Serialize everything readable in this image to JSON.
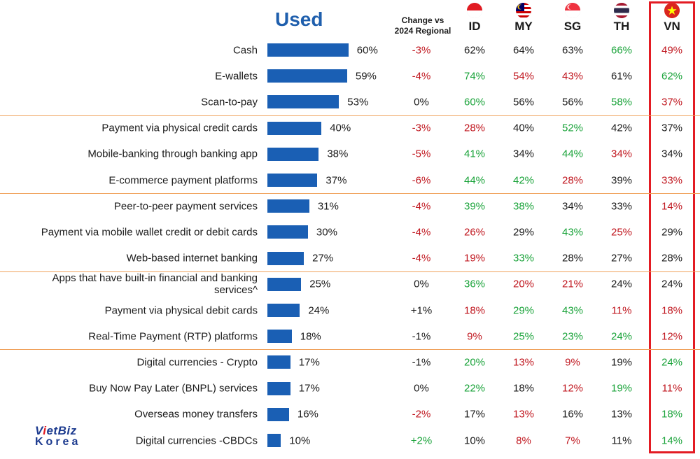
{
  "header": {
    "title": "Used",
    "change_header": [
      "Change vs",
      "2024 Regional"
    ],
    "countries": [
      {
        "code": "ID",
        "flag": "indonesia-flag-icon"
      },
      {
        "code": "MY",
        "flag": "malaysia-flag-icon"
      },
      {
        "code": "SG",
        "flag": "singapore-flag-icon"
      },
      {
        "code": "TH",
        "flag": "thailand-flag-icon"
      },
      {
        "code": "VN",
        "flag": "vietnam-flag-icon"
      }
    ]
  },
  "colors": {
    "bar": "#1a5fb4",
    "title": "#1f5fad",
    "positive": "#1aa33a",
    "negative": "#c0171f",
    "neutral": "#1a1a1a",
    "separator": "#f0a25c",
    "highlight_box": "#e31b23"
  },
  "logo": {
    "line1": "VietBiz",
    "line2": "Korea"
  },
  "chart_data": {
    "type": "bar",
    "orientation": "horizontal",
    "title": "Used",
    "xlim": [
      0,
      100
    ],
    "categories": [
      "Cash",
      "E-wallets",
      "Scan-to-pay",
      "Payment via physical credit cards",
      "Mobile-banking through banking app",
      "E-commerce payment platforms",
      "Peer-to-peer payment services",
      "Payment via mobile wallet credit or debit cards",
      "Web-based internet banking",
      "Apps that have built-in financial and banking services^",
      "Payment via physical debit cards",
      "Real-Time Payment (RTP) platforms",
      "Digital currencies - Crypto",
      "Buy Now Pay Later (BNPL) services",
      "Overseas money transfers",
      "Digital currencies -CBDCs"
    ],
    "series": [
      {
        "values": [
          60,
          59,
          53,
          40,
          38,
          37,
          31,
          30,
          27,
          25,
          24,
          18,
          17,
          17,
          16,
          10
        ]
      }
    ],
    "group_separators_after": [
      2,
      5,
      8,
      11
    ],
    "table": {
      "change_vs_2024_regional": [
        "-3%",
        "-4%",
        "0%",
        "-3%",
        "-5%",
        "-6%",
        "-4%",
        "-4%",
        "-4%",
        "0%",
        "+1%",
        "-1%",
        "-1%",
        "0%",
        "-2%",
        "+2%"
      ],
      "change_status": [
        "neg",
        "neg",
        "neu",
        "neg",
        "neg",
        "neg",
        "neg",
        "neg",
        "neg",
        "neu",
        "neu",
        "neu",
        "neu",
        "neu",
        "neg",
        "pos"
      ],
      "countries": {
        "ID": {
          "values": [
            "62%",
            "74%",
            "60%",
            "28%",
            "41%",
            "44%",
            "39%",
            "26%",
            "19%",
            "36%",
            "18%",
            "9%",
            "20%",
            "22%",
            "17%",
            "10%"
          ],
          "status": [
            "neu",
            "pos",
            "pos",
            "neg",
            "pos",
            "pos",
            "pos",
            "neg",
            "neg",
            "pos",
            "neg",
            "neg",
            "pos",
            "pos",
            "neu",
            "neu"
          ]
        },
        "MY": {
          "values": [
            "64%",
            "54%",
            "56%",
            "40%",
            "34%",
            "42%",
            "38%",
            "29%",
            "33%",
            "20%",
            "29%",
            "25%",
            "13%",
            "18%",
            "13%",
            "8%"
          ],
          "status": [
            "neu",
            "neg",
            "neu",
            "neu",
            "neu",
            "pos",
            "pos",
            "neu",
            "pos",
            "neg",
            "pos",
            "pos",
            "neg",
            "neu",
            "neg",
            "neg"
          ]
        },
        "SG": {
          "values": [
            "63%",
            "43%",
            "56%",
            "52%",
            "44%",
            "28%",
            "34%",
            "43%",
            "28%",
            "21%",
            "43%",
            "23%",
            "9%",
            "12%",
            "16%",
            "7%"
          ],
          "status": [
            "neu",
            "neg",
            "neu",
            "pos",
            "pos",
            "neg",
            "neu",
            "pos",
            "neu",
            "neg",
            "pos",
            "pos",
            "neg",
            "neg",
            "neu",
            "neg"
          ]
        },
        "TH": {
          "values": [
            "66%",
            "61%",
            "58%",
            "42%",
            "34%",
            "39%",
            "33%",
            "25%",
            "27%",
            "24%",
            "11%",
            "24%",
            "19%",
            "19%",
            "13%",
            "11%"
          ],
          "status": [
            "pos",
            "neu",
            "pos",
            "neu",
            "neg",
            "neu",
            "neu",
            "neg",
            "neu",
            "neu",
            "neg",
            "pos",
            "neu",
            "pos",
            "neu",
            "neu"
          ]
        },
        "VN": {
          "values": [
            "49%",
            "62%",
            "37%",
            "37%",
            "34%",
            "33%",
            "14%",
            "29%",
            "28%",
            "24%",
            "18%",
            "12%",
            "24%",
            "11%",
            "18%",
            "14%"
          ],
          "status": [
            "neg",
            "pos",
            "neg",
            "neu",
            "neu",
            "neg",
            "neg",
            "neu",
            "neu",
            "neu",
            "neg",
            "neg",
            "pos",
            "neg",
            "pos",
            "pos"
          ]
        }
      }
    }
  }
}
